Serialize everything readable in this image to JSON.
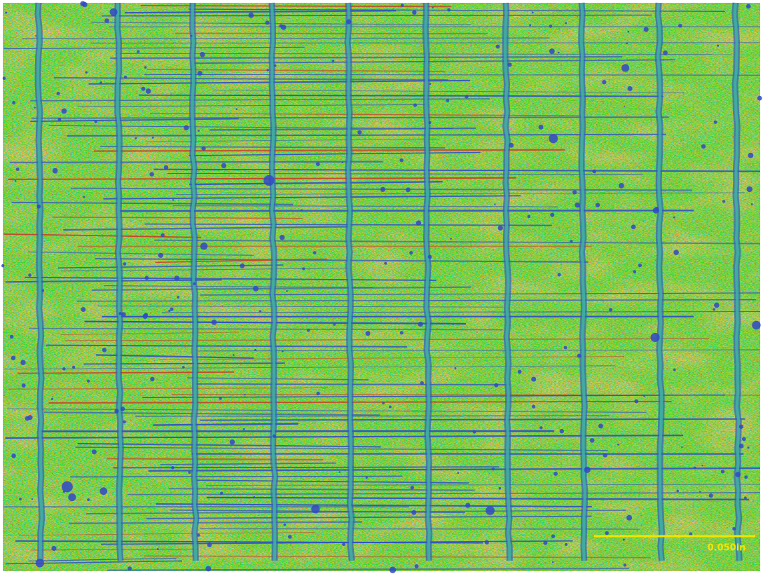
{
  "scale_bar": {
    "label": "0.050in"
  }
}
